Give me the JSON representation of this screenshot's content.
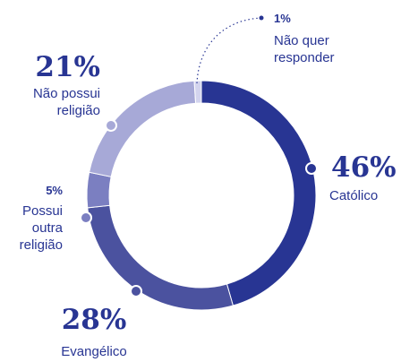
{
  "chart_data": {
    "type": "donut",
    "categories": [
      "Católico",
      "Evangélico",
      "Possui outra religião",
      "Não possui religião",
      "Não quer responder"
    ],
    "values": [
      46,
      28,
      5,
      21,
      1
    ],
    "value_labels": [
      "46%",
      "28%",
      "5%",
      "21%",
      "1%"
    ],
    "colors": [
      "#283593",
      "#4b529f",
      "#7b7fc1",
      "#a7a9d7",
      "#d3d4ee"
    ]
  }
}
